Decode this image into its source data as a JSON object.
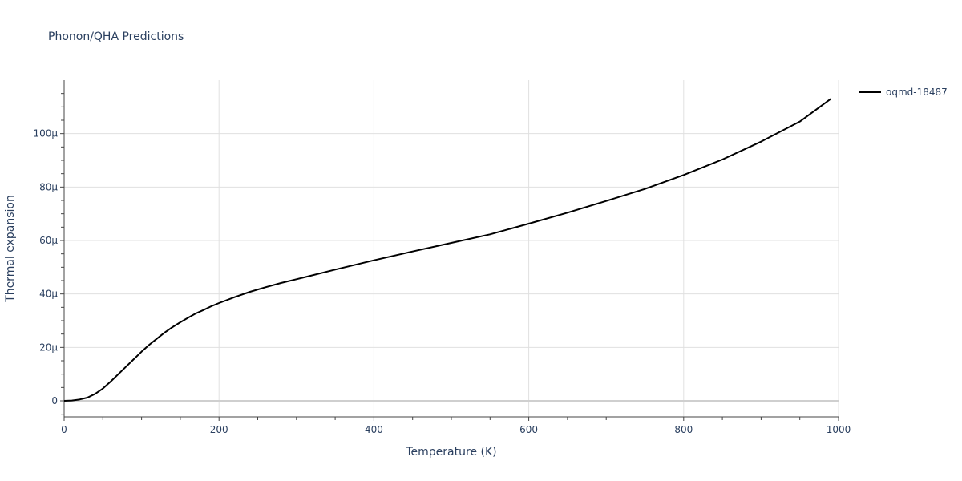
{
  "chart_data": {
    "type": "line",
    "title": "Phonon/QHA Predictions",
    "xlabel": "Temperature (K)",
    "ylabel": "Thermal expansion",
    "xlim": [
      0,
      1000
    ],
    "ylim": [
      -6,
      120
    ],
    "y_unit_suffix": "μ",
    "x_ticks": [
      0,
      200,
      400,
      600,
      800,
      1000
    ],
    "y_ticks": [
      0,
      20,
      40,
      60,
      80,
      100
    ],
    "y_tick_labels": [
      "0",
      "20μ",
      "40μ",
      "60μ",
      "80μ",
      "100μ"
    ],
    "grid": true,
    "legend_position": "top-right",
    "series": [
      {
        "name": "oqmd-18487",
        "color": "#000000",
        "x": [
          0,
          10,
          20,
          30,
          40,
          50,
          60,
          70,
          80,
          90,
          100,
          110,
          120,
          130,
          140,
          150,
          160,
          170,
          180,
          190,
          200,
          220,
          240,
          260,
          280,
          300,
          350,
          400,
          450,
          500,
          550,
          600,
          650,
          700,
          750,
          800,
          850,
          900,
          950,
          990
        ],
        "y": [
          0,
          0.1,
          0.5,
          1.2,
          2.6,
          4.6,
          7.2,
          10.0,
          12.8,
          15.6,
          18.4,
          21.0,
          23.3,
          25.6,
          27.6,
          29.4,
          31.1,
          32.7,
          34.0,
          35.4,
          36.6,
          38.8,
          40.8,
          42.5,
          44.1,
          45.5,
          49.1,
          52.6,
          55.9,
          59.1,
          62.3,
          66.3,
          70.4,
          74.8,
          79.3,
          84.5,
          90.3,
          97.0,
          104.5,
          113.0
        ]
      }
    ]
  }
}
